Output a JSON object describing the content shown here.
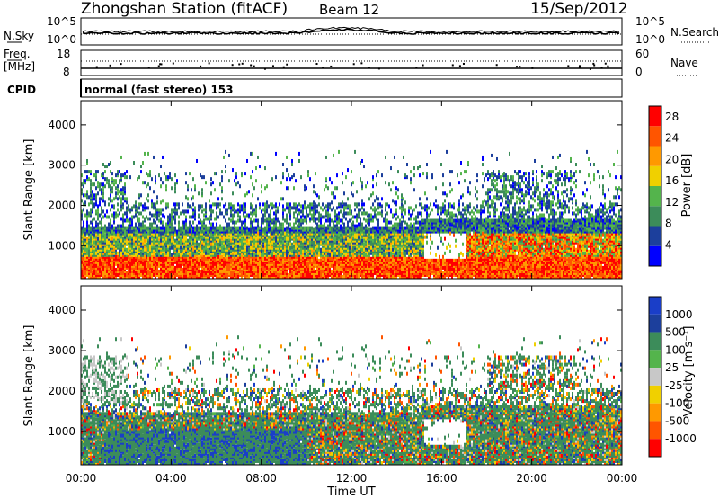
{
  "header": {
    "station": "Zhongshan Station (fitACF)",
    "beam": "Beam 12",
    "date": "15/Sep/2012"
  },
  "noise_panel": {
    "left_label": "N.Sky",
    "left_ticks": [
      "10^5",
      "10^0"
    ],
    "right_ticks": [
      "10^5",
      "10^0"
    ],
    "right_label": "N.Search"
  },
  "freq_panel": {
    "left_label_1": "Freq.",
    "left_label_2": "[MHz]",
    "left_ticks": [
      "18",
      "8"
    ],
    "right_ticks": [
      "60",
      "0"
    ],
    "right_label": "Nave"
  },
  "cpid": {
    "label": "CPID",
    "text": "normal (fast stereo) 153"
  },
  "colors": {
    "power_scale": [
      "#0000ff",
      "#1c3f9c",
      "#3c8c5a",
      "#54b44c",
      "#f0d000",
      "#ff9900",
      "#ff5500",
      "#ff0000"
    ],
    "velocity_scale": [
      "#ff0000",
      "#ff5500",
      "#ff9900",
      "#f0d000",
      "#c8c8c8",
      "#54b44c",
      "#3c8c5a",
      "#1c3f9c",
      "#1a3ec8"
    ]
  },
  "chart_data": [
    {
      "type": "heatmap",
      "title": "",
      "xlabel": "Time UT",
      "ylabel": "Slant Range [km]",
      "x_ticks": [
        "00:00",
        "04:00",
        "08:00",
        "12:00",
        "16:00",
        "20:00",
        "00:00"
      ],
      "xlim_hours": [
        0,
        24
      ],
      "ylim": [
        180,
        4600
      ],
      "y_ticks": [
        1000,
        2000,
        3000,
        4000
      ],
      "colorbar_label": "Power [dB]",
      "colorbar_ticks": [
        4,
        8,
        12,
        16,
        20,
        24,
        28
      ],
      "colorbar_range": [
        0,
        30
      ]
    },
    {
      "type": "heatmap",
      "title": "",
      "xlabel": "Time UT",
      "ylabel": "Slant Range [km]",
      "x_ticks": [
        "00:00",
        "04:00",
        "08:00",
        "12:00",
        "16:00",
        "20:00",
        "00:00"
      ],
      "xlim_hours": [
        0,
        24
      ],
      "ylim": [
        180,
        4600
      ],
      "y_ticks": [
        1000,
        2000,
        3000,
        4000
      ],
      "colorbar_label": "Velocity [m s⁻¹]",
      "colorbar_ticks": [
        "1000",
        "500",
        "100",
        "25",
        "-25",
        "-100",
        "-500",
        "-1000"
      ]
    }
  ]
}
